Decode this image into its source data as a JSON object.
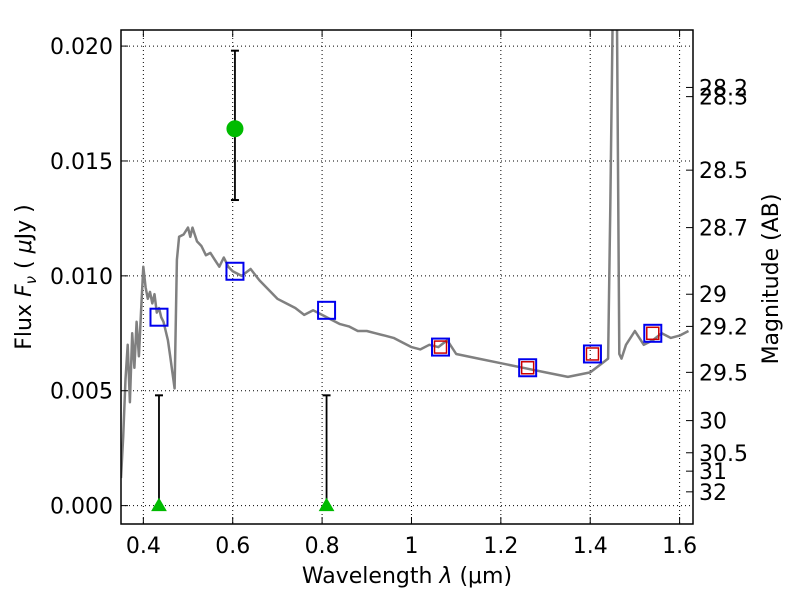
{
  "chart_data": {
    "type": "scatter",
    "xlabel": "Wavelength",
    "xlabel_symbol": "λ",
    "xlabel_unit": "(μm)",
    "ylabel": "Flux",
    "ylabel_symbol": "F",
    "ylabel_subscript": "ν",
    "ylabel_unit_open": "(",
    "ylabel_unit_mu": "μ",
    "ylabel_unit_rest": "Jy )",
    "y2label": "Magnitude (AB)",
    "xlim": [
      0.35,
      1.63
    ],
    "ylim": [
      -0.0008,
      0.0207
    ],
    "grid": true,
    "x_ticks": [
      0.4,
      0.6,
      0.8,
      1.0,
      1.2,
      1.4,
      1.6
    ],
    "x_tick_labels": [
      "0.4",
      "0.6",
      "0.8",
      "1",
      "1.2",
      "1.4",
      "1.6"
    ],
    "y_ticks": [
      0.0,
      0.005,
      0.01,
      0.015,
      0.02
    ],
    "y_tick_labels": [
      "0.000",
      "0.005",
      "0.010",
      "0.015",
      "0.020"
    ],
    "y2_ticks": [
      {
        "flux": 0.0182,
        "label": "28.2"
      },
      {
        "flux": 0.0178,
        "label": "28.3"
      },
      {
        "flux": 0.0146,
        "label": "28.5"
      },
      {
        "flux": 0.0121,
        "label": "28.7"
      },
      {
        "flux": 0.0092,
        "label": "29"
      },
      {
        "flux": 0.0078,
        "label": "29.2"
      },
      {
        "flux": 0.0058,
        "label": "29.5"
      },
      {
        "flux": 0.0037,
        "label": "30"
      },
      {
        "flux": 0.0023,
        "label": "30.5"
      },
      {
        "flux": 0.0015,
        "label": "31"
      },
      {
        "flux": 0.0006,
        "label": "32"
      }
    ],
    "series": [
      {
        "kind": "model_sed",
        "color": "#808080",
        "x": [
          0.35,
          0.355,
          0.36,
          0.365,
          0.37,
          0.375,
          0.38,
          0.385,
          0.39,
          0.395,
          0.4,
          0.405,
          0.41,
          0.415,
          0.42,
          0.425,
          0.43,
          0.435,
          0.44,
          0.445,
          0.45,
          0.455,
          0.46,
          0.465,
          0.47,
          0.475,
          0.48,
          0.49,
          0.5,
          0.505,
          0.51,
          0.52,
          0.53,
          0.54,
          0.55,
          0.56,
          0.57,
          0.58,
          0.59,
          0.6,
          0.62,
          0.64,
          0.66,
          0.68,
          0.7,
          0.72,
          0.74,
          0.76,
          0.78,
          0.8,
          0.82,
          0.84,
          0.86,
          0.88,
          0.9,
          0.92,
          0.94,
          0.96,
          0.98,
          1.0,
          1.02,
          1.04,
          1.06,
          1.08,
          1.1,
          1.15,
          1.2,
          1.25,
          1.3,
          1.35,
          1.4,
          1.42,
          1.44,
          1.445,
          1.45,
          1.455,
          1.46,
          1.465,
          1.47,
          1.48,
          1.5,
          1.52,
          1.54,
          1.56,
          1.58,
          1.6,
          1.62
        ],
        "y": [
          0.0012,
          0.003,
          0.0055,
          0.007,
          0.0045,
          0.0075,
          0.006,
          0.008,
          0.0065,
          0.0085,
          0.0104,
          0.0095,
          0.009,
          0.0093,
          0.0088,
          0.0092,
          0.0084,
          0.0086,
          0.0082,
          0.008,
          0.0076,
          0.0072,
          0.0065,
          0.0058,
          0.0051,
          0.0107,
          0.0117,
          0.0118,
          0.0121,
          0.0117,
          0.0121,
          0.0115,
          0.0113,
          0.0109,
          0.011,
          0.0107,
          0.0104,
          0.0108,
          0.0104,
          0.0102,
          0.01,
          0.0103,
          0.0098,
          0.0094,
          0.009,
          0.0088,
          0.0086,
          0.0083,
          0.0085,
          0.0083,
          0.0081,
          0.0079,
          0.0078,
          0.0076,
          0.0076,
          0.0075,
          0.0074,
          0.0073,
          0.0071,
          0.0069,
          0.0068,
          0.007,
          0.0069,
          0.0072,
          0.0066,
          0.0064,
          0.0062,
          0.006,
          0.0058,
          0.0056,
          0.0058,
          0.0061,
          0.0064,
          0.013,
          0.021,
          0.021,
          0.021,
          0.0066,
          0.0064,
          0.007,
          0.0076,
          0.007,
          0.0072,
          0.0075,
          0.0073,
          0.0074,
          0.0076
        ]
      },
      {
        "kind": "model_photometry",
        "name": "",
        "marker": "open-square",
        "color": "#0000ee",
        "x": [
          0.435,
          0.605,
          0.81,
          1.065,
          1.26,
          1.405,
          1.54
        ],
        "y": [
          0.0082,
          0.0102,
          0.0085,
          0.0069,
          0.006,
          0.0066,
          0.0075
        ]
      },
      {
        "kind": "observed_photometry",
        "marker": "open-square",
        "color": "#cc0000",
        "x": [
          1.065,
          1.26,
          1.405,
          1.54
        ],
        "y": [
          0.0069,
          0.006,
          0.0066,
          0.0075
        ]
      },
      {
        "kind": "detection",
        "marker": "filled-circle",
        "color": "#00bb00",
        "x": [
          0.605
        ],
        "y": [
          0.0164
        ],
        "yerr_low": [
          0.0133
        ],
        "yerr_high": [
          0.0198
        ]
      },
      {
        "kind": "upper_limits",
        "marker": "filled-triangle",
        "color": "#00bb00",
        "x": [
          0.435,
          0.81
        ],
        "y": [
          0.0,
          0.0
        ],
        "yerr_high": [
          0.0048,
          0.0048
        ]
      }
    ]
  }
}
